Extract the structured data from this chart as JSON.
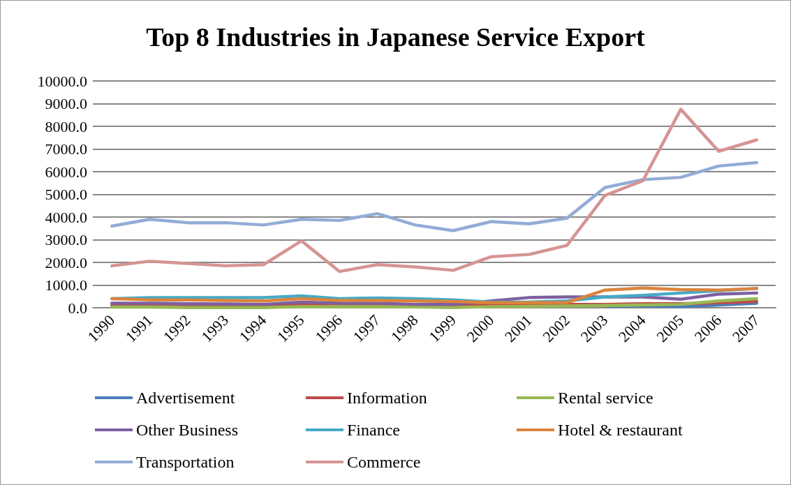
{
  "chart_data": {
    "type": "line",
    "title": "Top 8 Industries in Japanese Service Export",
    "categories": [
      "1990",
      "1991",
      "1992",
      "1993",
      "1994",
      "1995",
      "1996",
      "1997",
      "1998",
      "1999",
      "2000",
      "2001",
      "2002",
      "2003",
      "2004",
      "2005",
      "2006",
      "2007"
    ],
    "ylim": [
      0,
      10000
    ],
    "yticks": [
      {
        "value": 0,
        "label": "0.0"
      },
      {
        "value": 1000,
        "label": "1000.0"
      },
      {
        "value": 2000,
        "label": "2000.0"
      },
      {
        "value": 3000,
        "label": "3000.0"
      },
      {
        "value": 4000,
        "label": "4000.0"
      },
      {
        "value": 5000,
        "label": "5000.0"
      },
      {
        "value": 6000,
        "label": "6000.0"
      },
      {
        "value": 7000,
        "label": "7000.0"
      },
      {
        "value": 8000,
        "label": "8000.0"
      },
      {
        "value": 9000,
        "label": "9000.0"
      },
      {
        "value": 10000,
        "label": "10000.0"
      }
    ],
    "grid": "y",
    "legend": "bottom",
    "marker": "none",
    "line_style": "solid",
    "series": [
      {
        "name": "Advertisement",
        "color": "#4a7ebb",
        "values": [
          null,
          null,
          null,
          null,
          null,
          null,
          null,
          null,
          null,
          null,
          null,
          null,
          null,
          80,
          80,
          50,
          120,
          200
        ]
      },
      {
        "name": "Information",
        "color": "#be4b48",
        "values": [
          100,
          100,
          100,
          100,
          100,
          150,
          130,
          130,
          120,
          100,
          150,
          150,
          150,
          150,
          180,
          180,
          220,
          280
        ]
      },
      {
        "name": "Rental service",
        "color": "#98b954",
        "values": [
          30,
          30,
          10,
          10,
          10,
          50,
          50,
          50,
          40,
          10,
          50,
          60,
          80,
          100,
          120,
          150,
          300,
          400
        ]
      },
      {
        "name": "Other Business",
        "color": "#7d60a0",
        "values": [
          200,
          200,
          180,
          170,
          150,
          250,
          200,
          200,
          150,
          150,
          300,
          450,
          480,
          480,
          480,
          380,
          600,
          650
        ]
      },
      {
        "name": "Finance",
        "color": "#46aac5",
        "values": [
          400,
          450,
          450,
          450,
          450,
          520,
          400,
          430,
          400,
          350,
          250,
          250,
          300,
          480,
          550,
          650,
          750,
          850
        ]
      },
      {
        "name": "Hotel & restaurant",
        "color": "#db843d",
        "values": [
          400,
          350,
          350,
          320,
          300,
          400,
          320,
          320,
          300,
          280,
          220,
          220,
          230,
          780,
          870,
          800,
          780,
          850
        ]
      },
      {
        "name": "Transportation",
        "color": "#93acd6",
        "values": [
          3600,
          3900,
          3750,
          3750,
          3650,
          3900,
          3850,
          4150,
          3650,
          3400,
          3800,
          3700,
          3950,
          5300,
          5650,
          5750,
          6250,
          6400
        ]
      },
      {
        "name": "Commerce",
        "color": "#d59493",
        "values": [
          1850,
          2050,
          1950,
          1850,
          1900,
          2950,
          1600,
          1900,
          1800,
          1650,
          2250,
          2350,
          2750,
          4950,
          5600,
          8750,
          6900,
          7400
        ]
      }
    ]
  }
}
